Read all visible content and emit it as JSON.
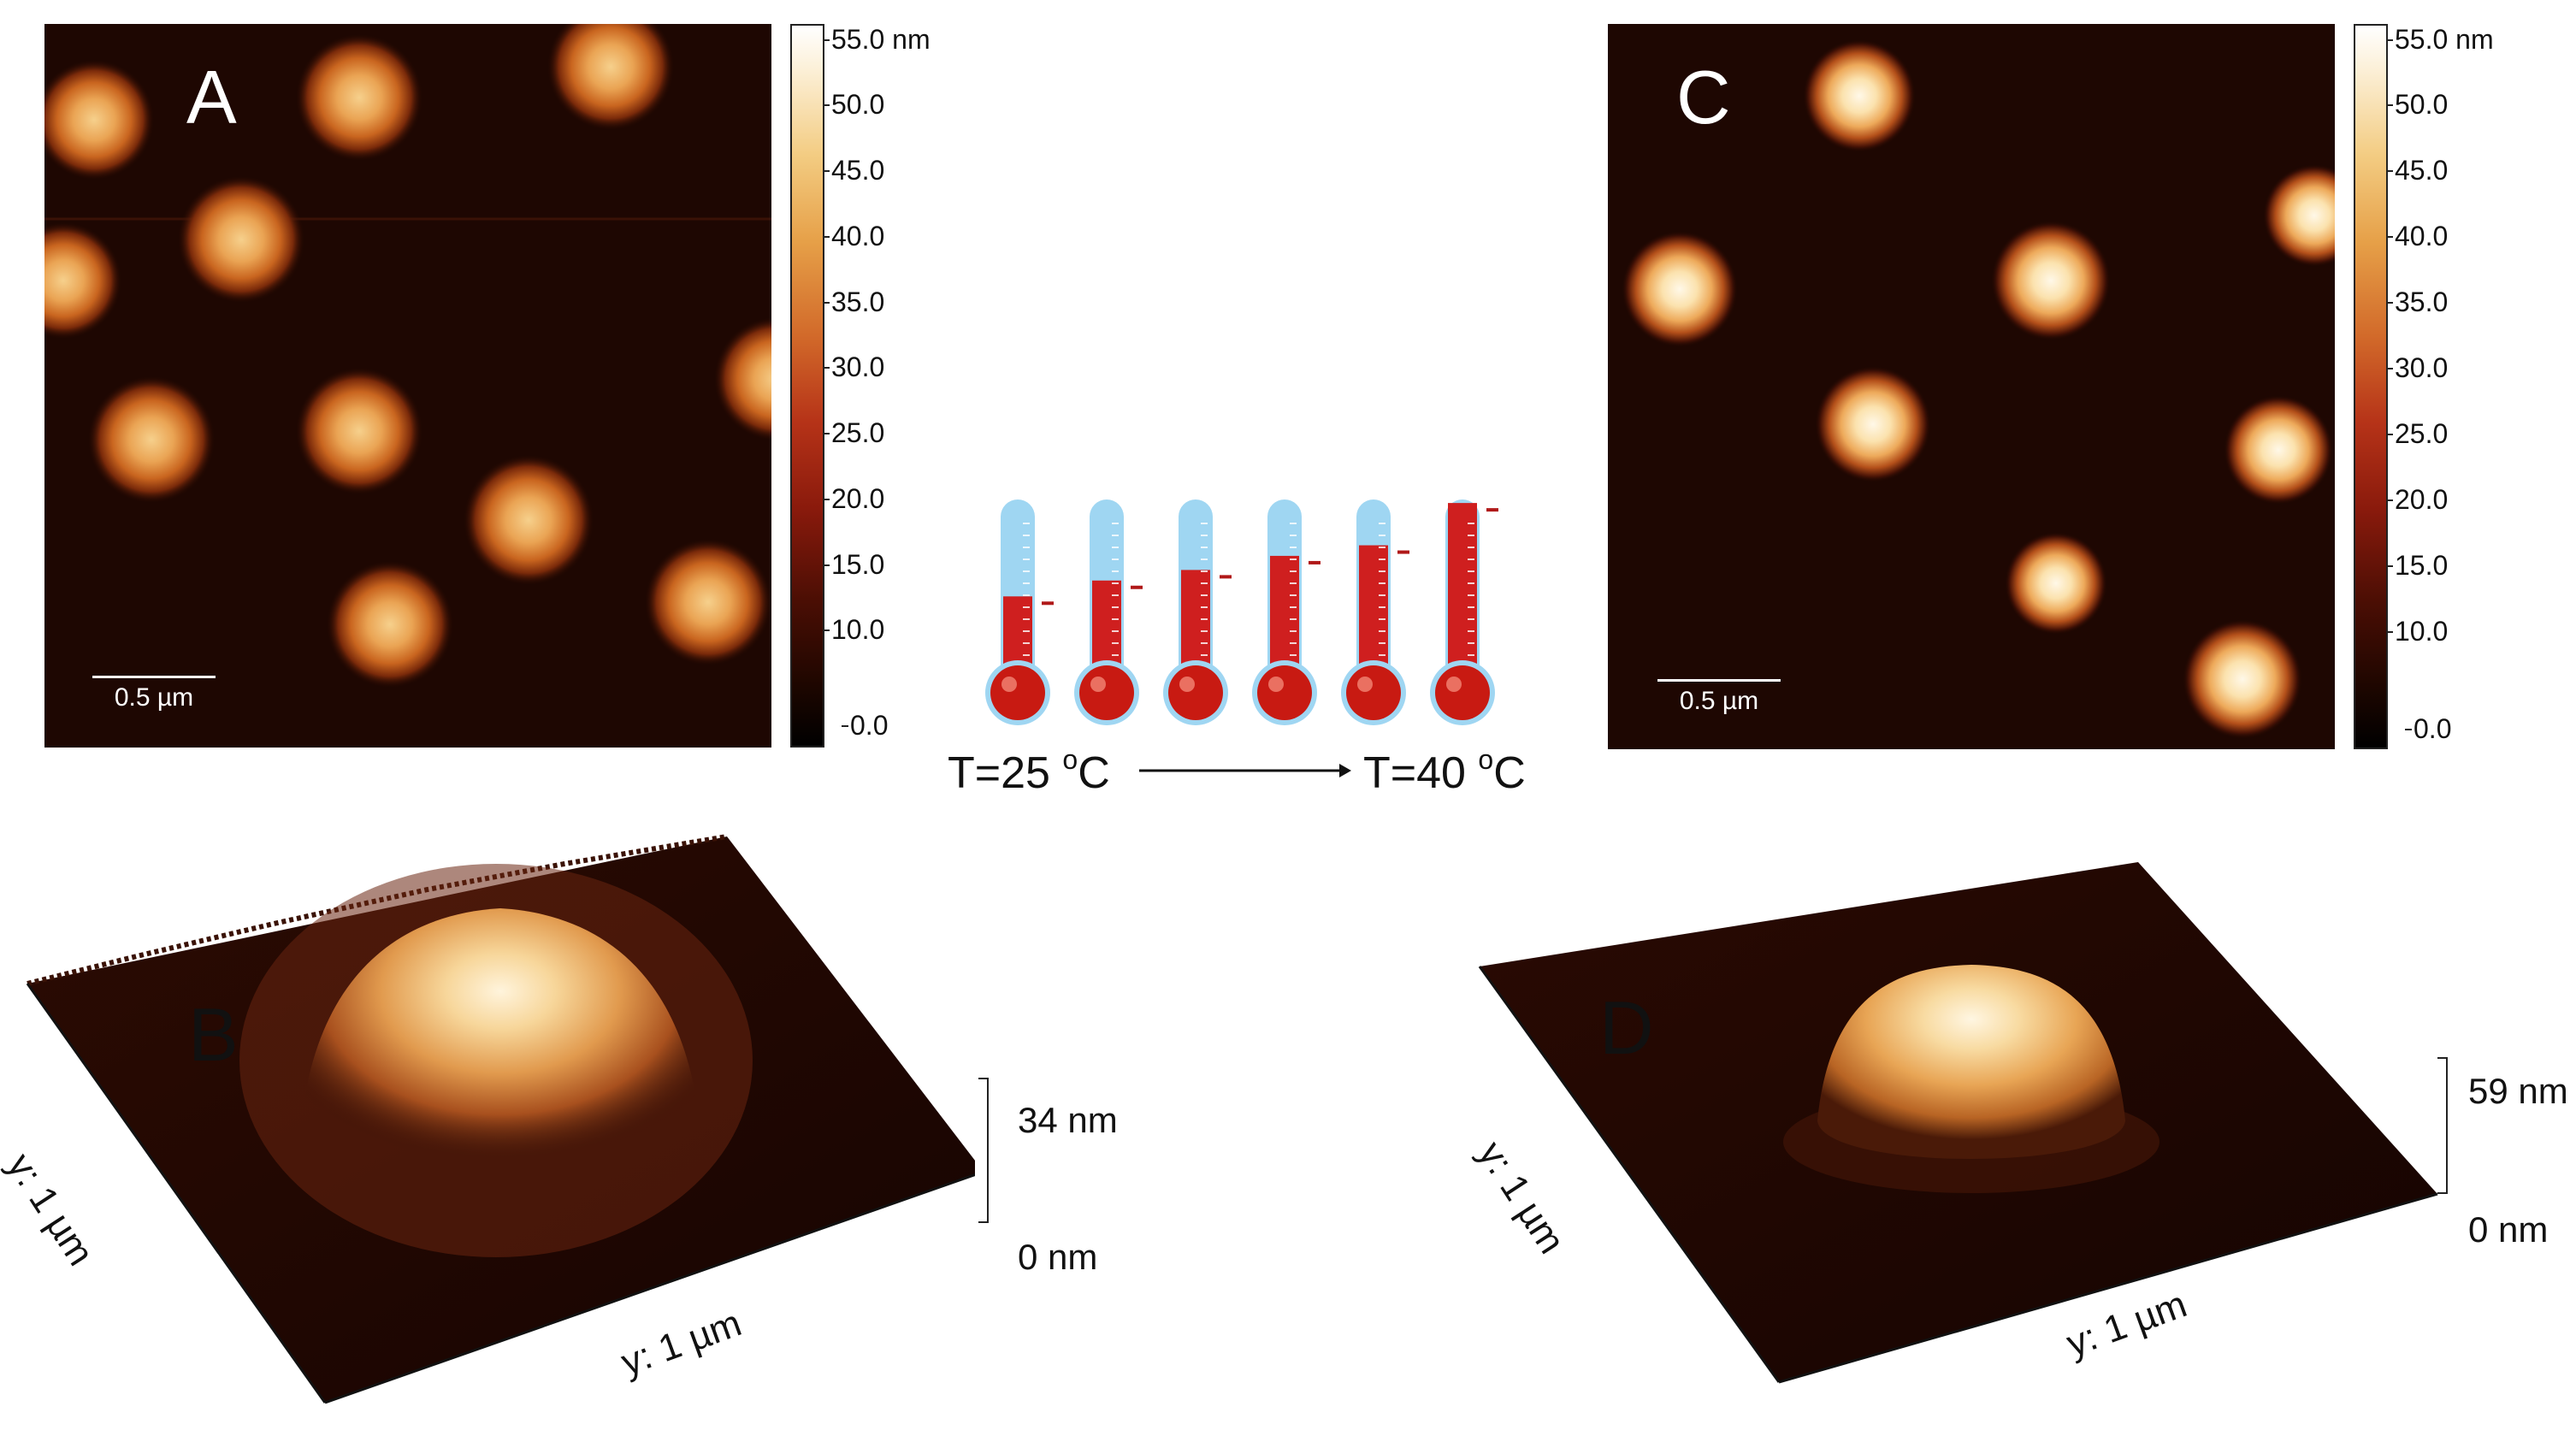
{
  "figure": {
    "panels": {
      "A": {
        "label": "A",
        "scale_bar": "0.5 µm"
      },
      "B": {
        "label": "B",
        "axis_y1": "y: 1 µm",
        "axis_y2": "y: 1 µm",
        "z_max": "34 nm",
        "z_min": "0 nm"
      },
      "C": {
        "label": "C",
        "scale_bar": "0.5 µm"
      },
      "D": {
        "label": "D",
        "axis_y1": "y: 1 µm",
        "axis_y2": "y: 1 µm",
        "z_max": "59 nm",
        "z_min": "0 nm"
      }
    },
    "colorbar": {
      "ticks": [
        "55.0 nm",
        "50.0",
        "45.0",
        "40.0",
        "35.0",
        "30.0",
        "25.0",
        "20.0",
        "15.0",
        "10.0",
        "0.0"
      ]
    },
    "temperature": {
      "start_value": "T=25 ",
      "end_value": "T=40 ",
      "degree_mark": "o",
      "unit": "C",
      "thermometer_count": 6,
      "fill_levels": [
        0.45,
        0.54,
        0.6,
        0.68,
        0.74,
        0.98
      ]
    },
    "colors": {
      "substrate": "#1e0702",
      "thermo_glass": "#9fd6f2",
      "thermo_fill": "#cf1f1f",
      "thermo_bulb": "#c81a12"
    }
  }
}
